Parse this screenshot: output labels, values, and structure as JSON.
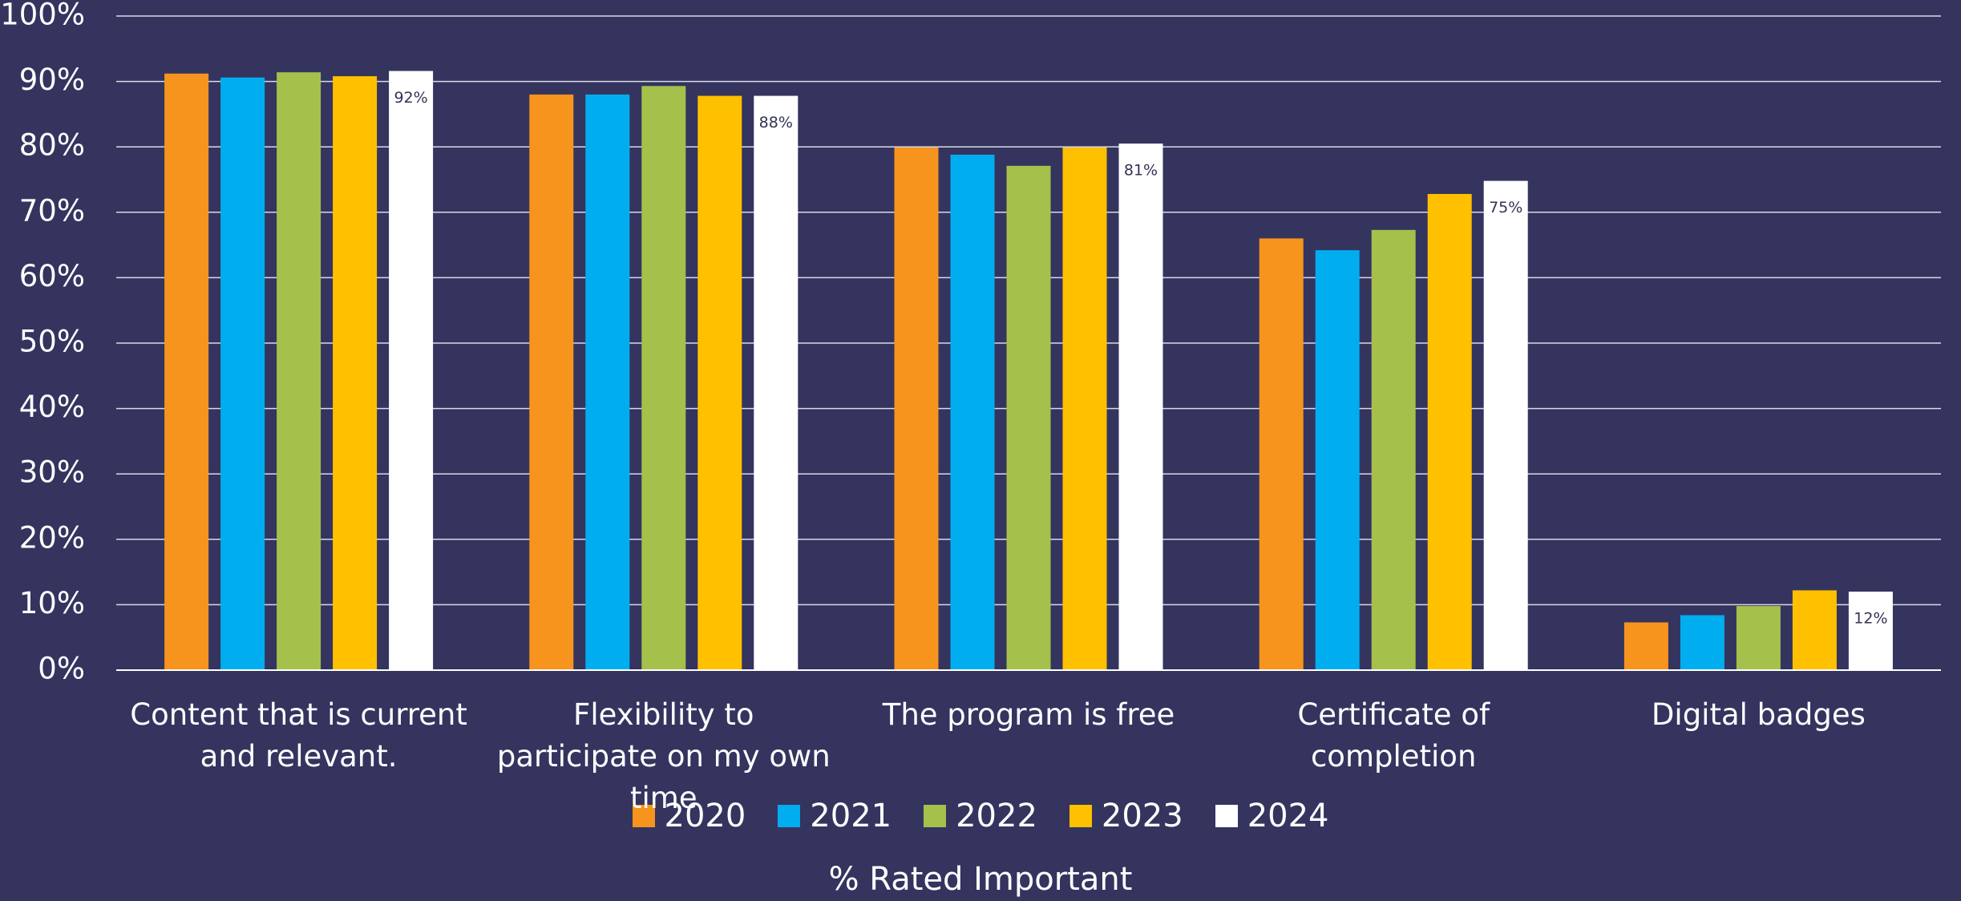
{
  "chart_data": {
    "type": "bar",
    "x_label": "% Rated Important",
    "categories": [
      "Content that is current and relevant.",
      "Flexibility to participate on my own time",
      "The program is free",
      "Certificate of completion",
      "Digital badges"
    ],
    "series": [
      {
        "name": "2020",
        "color": "#f7941d",
        "values": [
          91.2,
          88.0,
          79.9,
          66.0,
          7.3
        ]
      },
      {
        "name": "2021",
        "color": "#00aeef",
        "values": [
          90.6,
          88.0,
          78.8,
          64.2,
          8.4
        ]
      },
      {
        "name": "2022",
        "color": "#a5c04b",
        "values": [
          91.4,
          89.3,
          77.1,
          67.3,
          9.8
        ]
      },
      {
        "name": "2023",
        "color": "#ffc000",
        "values": [
          90.8,
          87.8,
          79.9,
          72.8,
          12.2
        ]
      },
      {
        "name": "2024",
        "color": "#ffffff",
        "values": [
          91.6,
          87.8,
          80.5,
          74.8,
          12.0
        ],
        "value_labels": [
          "92%",
          "88%",
          "81%",
          "75%",
          "12%"
        ]
      }
    ],
    "ylim": [
      0,
      100
    ],
    "yticks": [
      {
        "value": 0,
        "label": "0%"
      },
      {
        "value": 10,
        "label": "10%"
      },
      {
        "value": 20,
        "label": "20%"
      },
      {
        "value": 30,
        "label": "30%"
      },
      {
        "value": 40,
        "label": "40%"
      },
      {
        "value": 50,
        "label": "50%"
      },
      {
        "value": 60,
        "label": "60%"
      },
      {
        "value": 70,
        "label": "70%"
      },
      {
        "value": 80,
        "label": "80%"
      },
      {
        "value": 90,
        "label": "90%"
      },
      {
        "value": 100,
        "label": "100%"
      }
    ],
    "grid": true
  }
}
